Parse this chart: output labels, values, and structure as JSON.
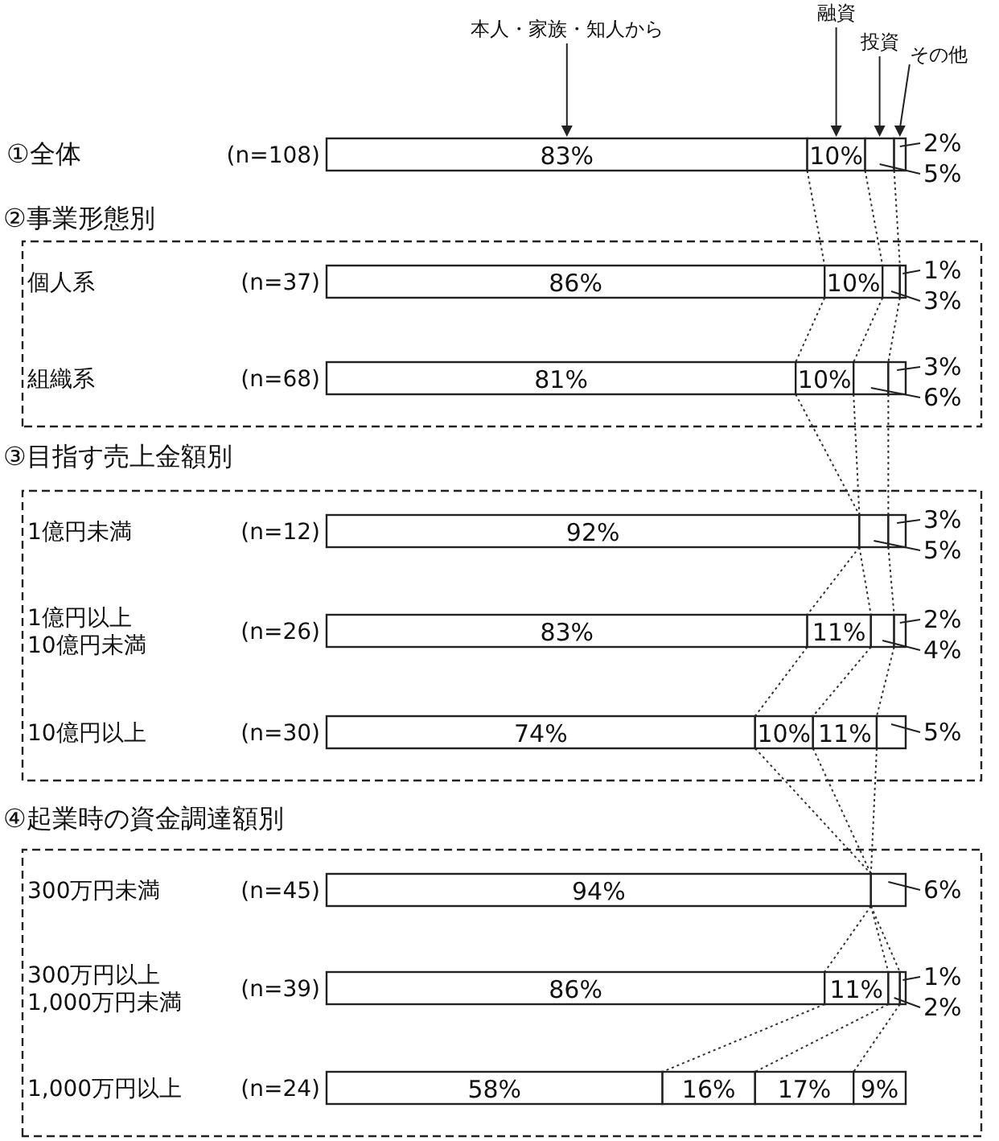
{
  "chart_data": {
    "type": "bar",
    "orientation": "horizontal",
    "stacked": true,
    "categories": [
      "①全体 (n=108)",
      "個人系 (n=37)",
      "組織系 (n=68)",
      "1億円未満 (n=12)",
      "1億円以上\n10億円未満 (n=26)",
      "10億円以上 (n=30)",
      "300万円未満 (n=45)",
      "300万円以上\n1,000万円未満 (n=39)",
      "1,000万円以上 (n=24)"
    ],
    "series": [
      {
        "name": "本人・家族・知人から",
        "color": "#ffffff",
        "values": [
          83,
          86,
          81,
          92,
          83,
          74,
          94,
          86,
          58
        ],
        "value_labels": [
          "83%",
          "86%",
          "81%",
          "92%",
          "83%",
          "74%",
          "94%",
          "86%",
          "58%"
        ]
      },
      {
        "name": "融資",
        "color": "#ffffff",
        "values": [
          10,
          10,
          10,
          0,
          11,
          10,
          0,
          11,
          16
        ],
        "value_labels": [
          "10%",
          "10%",
          "10%",
          null,
          "11%",
          "10%",
          null,
          "11%",
          "16%"
        ]
      },
      {
        "name": "投資",
        "color": "#ffffff",
        "values": [
          5,
          3,
          6,
          5,
          4,
          11,
          0,
          2,
          17
        ],
        "value_labels": [
          "5%",
          "3%",
          "6%",
          "5%",
          "4%",
          "11%",
          null,
          "2%",
          "17%"
        ]
      },
      {
        "name": "その他",
        "color": "#ffffff",
        "values": [
          2,
          1,
          3,
          3,
          2,
          5,
          6,
          1,
          9
        ],
        "value_labels": [
          "2%",
          "1%",
          "3%",
          "3%",
          "2%",
          "5%",
          "6%",
          "1%",
          "9%"
        ]
      }
    ],
    "annotations": [
      "②事業形態別",
      "③目指す売上金額別",
      "④起業時の資金調達額別"
    ]
  }
}
